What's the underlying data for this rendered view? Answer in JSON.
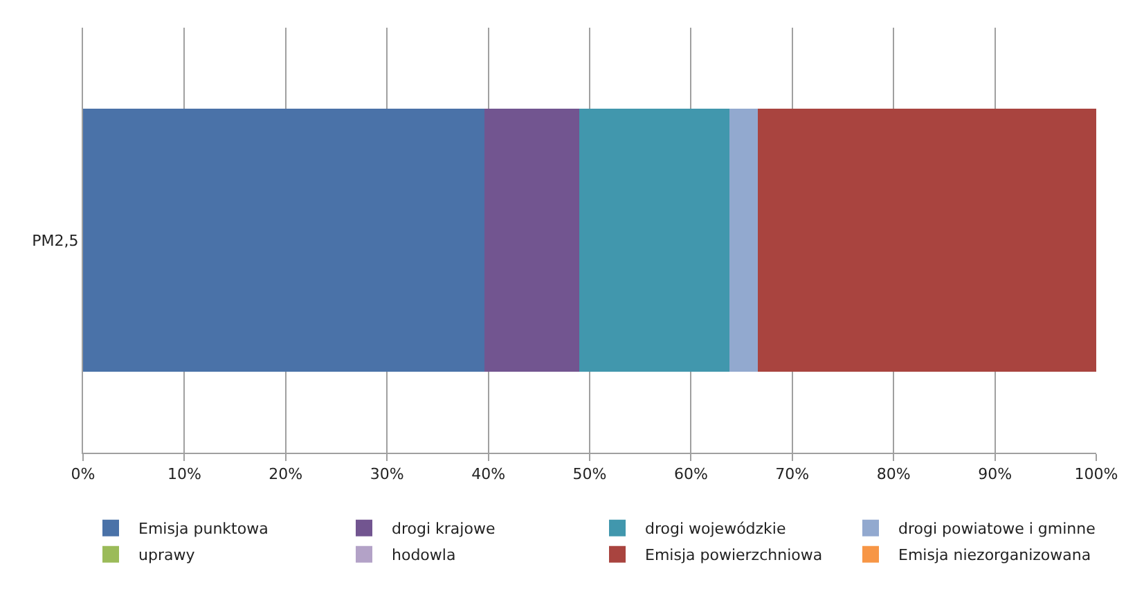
{
  "chart_data": {
    "type": "bar",
    "orientation": "horizontal",
    "stacked": true,
    "categories": [
      "PM2,5"
    ],
    "series": [
      {
        "name": "Emisja punktowa",
        "color": "#4a72a8",
        "values": [
          39.6
        ]
      },
      {
        "name": "drogi krajowe",
        "color": "#725590",
        "values": [
          9.4
        ]
      },
      {
        "name": "drogi wojewódzkie",
        "color": "#4197ad",
        "values": [
          14.8
        ]
      },
      {
        "name": "drogi powiatowe i gminne",
        "color": "#92a9cf",
        "values": [
          2.8
        ]
      },
      {
        "name": "uprawy",
        "color": "#9bbb59",
        "values": [
          0
        ]
      },
      {
        "name": "hodowla",
        "color": "#b3a2c7",
        "values": [
          0
        ]
      },
      {
        "name": "Emisja powierzchniowa",
        "color": "#a9443f",
        "values": [
          33.4
        ]
      },
      {
        "name": "Emisja niezorganizowana",
        "color": "#f79646",
        "values": [
          0
        ]
      }
    ],
    "xlim": [
      0,
      100
    ],
    "xticks": [
      {
        "value": 0,
        "label": "0%"
      },
      {
        "value": 10,
        "label": "10%"
      },
      {
        "value": 20,
        "label": "20%"
      },
      {
        "value": 30,
        "label": "30%"
      },
      {
        "value": 40,
        "label": "40%"
      },
      {
        "value": 50,
        "label": "50%"
      },
      {
        "value": 60,
        "label": "60%"
      },
      {
        "value": 70,
        "label": "70%"
      },
      {
        "value": 80,
        "label": "80%"
      },
      {
        "value": 90,
        "label": "90%"
      },
      {
        "value": 100,
        "label": "100%"
      }
    ],
    "grid": "x",
    "legend": "bottom"
  }
}
